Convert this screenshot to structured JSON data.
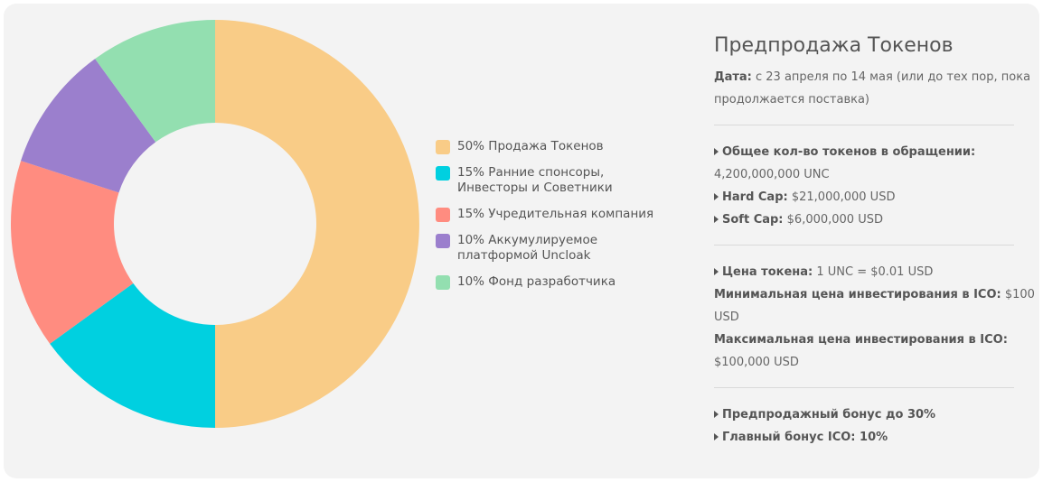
{
  "chart_data": {
    "type": "pie",
    "categories": [
      "50% Продажа Токенов",
      "15% Ранние спонсоры, Инвесторы и Советники",
      "15% Учредительная компания",
      "10% Аккумулируемое платформой Uncloak",
      "10% Фонд разработчика"
    ],
    "values": [
      50,
      15,
      15,
      10,
      10
    ],
    "colors": [
      "#f9cc87",
      "#00d0e0",
      "#ff8c80",
      "#9b7fcd",
      "#93dfb0"
    ],
    "legend_position": "right"
  },
  "info": {
    "title": "Предпродажа Токенов",
    "date_label": "Дата:",
    "date_value": " с 23 апреля по 14 мая (или до тех пор, пока продолжается поставка)",
    "total_label": "Общее кол-во токенов в обращении:",
    "total_value": "4,200,000,000 UNC",
    "hardcap_label": "Hard Cap:",
    "hardcap_value": " $21,000,000 USD",
    "softcap_label": "Soft Cap:",
    "softcap_value": " $6,000,000 USD",
    "price_label": "Цена токена:",
    "price_value": " 1 UNC = $0.01 USD",
    "min_label": "Минимальная цена инвестирования в ICO:",
    "min_value": " $100 USD",
    "max_label": "Максимальная цена инвестирования в ICO:",
    "max_value": " $100,000 USD",
    "presale_bonus": "Предпродажный бонус до 30%",
    "main_bonus": "Главный бонус ICO: 10%"
  }
}
